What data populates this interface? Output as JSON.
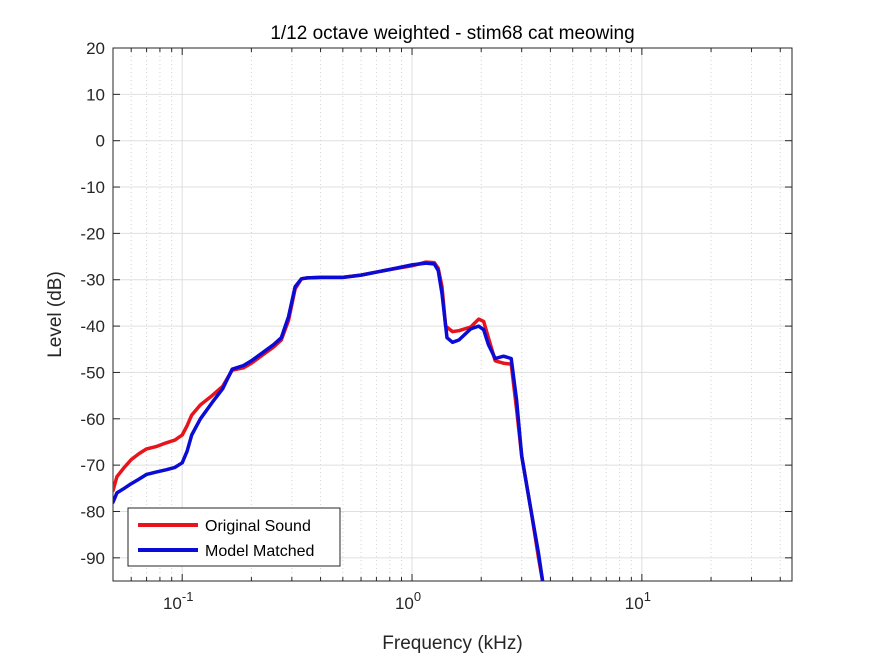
{
  "chart_data": {
    "type": "line",
    "title": "1/12 octave weighted - stim68 cat meowing",
    "xlabel": "Frequency (kHz)",
    "ylabel": "Level (dB)",
    "xscale": "log",
    "xlim": [
      0.05,
      45
    ],
    "ylim": [
      -95,
      20
    ],
    "y_ticks": [
      20,
      10,
      0,
      -10,
      -20,
      -30,
      -40,
      -50,
      -60,
      -70,
      -80,
      -90
    ],
    "x_ticks": [
      {
        "value": 0.1,
        "base": "10",
        "exp": "-1"
      },
      {
        "value": 1,
        "base": "10",
        "exp": "0"
      },
      {
        "value": 10,
        "base": "10",
        "exp": "1"
      }
    ],
    "grid": true,
    "legend_position": "bottom-left",
    "series": [
      {
        "name": "Original Sound",
        "color": "#e8141b",
        "x": [
          0.05,
          0.052,
          0.056,
          0.06,
          0.065,
          0.07,
          0.077,
          0.085,
          0.093,
          0.1,
          0.105,
          0.11,
          0.12,
          0.135,
          0.15,
          0.165,
          0.185,
          0.2,
          0.22,
          0.25,
          0.27,
          0.29,
          0.31,
          0.33,
          0.35,
          0.4,
          0.5,
          0.6,
          0.8,
          1.0,
          1.15,
          1.25,
          1.3,
          1.35,
          1.4,
          1.5,
          1.6,
          1.8,
          1.95,
          2.05,
          2.15,
          2.3,
          2.5,
          2.7,
          2.85,
          3.0,
          3.3,
          3.55,
          3.7
        ],
        "y": [
          -75.5,
          -72.5,
          -70.5,
          -68.8,
          -67.5,
          -66.5,
          -66,
          -65.2,
          -64.6,
          -63.5,
          -61.5,
          -59.2,
          -57,
          -55,
          -53,
          -49.5,
          -49,
          -48,
          -46.5,
          -44.5,
          -43,
          -38.8,
          -32,
          -29.8,
          -29.6,
          -29.5,
          -29.5,
          -29,
          -27.8,
          -27,
          -26.2,
          -26.3,
          -27.5,
          -31.5,
          -40,
          -41.2,
          -41,
          -40.2,
          -38.5,
          -39,
          -42.5,
          -47.5,
          -48,
          -48.2,
          -58,
          -68,
          -80,
          -90,
          -95
        ]
      },
      {
        "name": "Model Matched",
        "color": "#0b0bd6",
        "x": [
          0.05,
          0.052,
          0.056,
          0.06,
          0.065,
          0.07,
          0.077,
          0.085,
          0.093,
          0.1,
          0.105,
          0.11,
          0.12,
          0.135,
          0.15,
          0.165,
          0.185,
          0.2,
          0.22,
          0.25,
          0.27,
          0.29,
          0.31,
          0.33,
          0.35,
          0.4,
          0.5,
          0.6,
          0.8,
          1.0,
          1.15,
          1.25,
          1.3,
          1.35,
          1.42,
          1.5,
          1.6,
          1.8,
          1.95,
          2.05,
          2.15,
          2.3,
          2.5,
          2.7,
          2.85,
          3.0,
          3.3,
          3.55,
          3.7
        ],
        "y": [
          -78,
          -76,
          -75,
          -74,
          -73,
          -72,
          -71.5,
          -71,
          -70.5,
          -69.5,
          -67,
          -63.5,
          -60,
          -56.5,
          -53.5,
          -49.3,
          -48.5,
          -47.5,
          -46,
          -44,
          -42.5,
          -38,
          -31.5,
          -29.8,
          -29.6,
          -29.5,
          -29.5,
          -29,
          -27.8,
          -26.8,
          -26.4,
          -26.6,
          -28,
          -33,
          -42.5,
          -43.5,
          -43,
          -40.6,
          -40,
          -40.8,
          -44,
          -47,
          -46.5,
          -47,
          -56,
          -68,
          -80,
          -89,
          -95
        ]
      }
    ]
  }
}
